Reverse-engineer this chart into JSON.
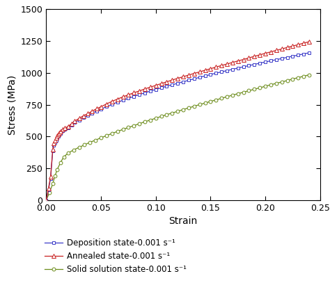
{
  "title": "",
  "xlabel": "Strain",
  "ylabel": "Stress (MPa)",
  "xlim": [
    0.0,
    0.25
  ],
  "ylim": [
    0,
    1500
  ],
  "xticks": [
    0.0,
    0.05,
    0.1,
    0.15,
    0.2,
    0.25
  ],
  "yticks": [
    0,
    250,
    500,
    750,
    1000,
    1250,
    1500
  ],
  "legend": [
    {
      "label": "Deposition state-0.001 s⁻¹",
      "color": "#3b3bc8",
      "marker": "s"
    },
    {
      "label": "Annealed state-0.001 s⁻¹",
      "color": "#c82020",
      "marker": "^"
    },
    {
      "label": "Solid solution state-0.001 s⁻¹",
      "color": "#6b8c1a",
      "marker": "o"
    }
  ],
  "dep_x": [
    0.0,
    0.002,
    0.004,
    0.006,
    0.007,
    0.008,
    0.009,
    0.01,
    0.011,
    0.012,
    0.013,
    0.015,
    0.017,
    0.02,
    0.023,
    0.026,
    0.03,
    0.034,
    0.038,
    0.042,
    0.046,
    0.05,
    0.055,
    0.06,
    0.065,
    0.07,
    0.075,
    0.08,
    0.085,
    0.09,
    0.095,
    0.1,
    0.105,
    0.11,
    0.115,
    0.12,
    0.125,
    0.13,
    0.135,
    0.14,
    0.145,
    0.15,
    0.155,
    0.16,
    0.165,
    0.17,
    0.175,
    0.18,
    0.185,
    0.19,
    0.195,
    0.2,
    0.205,
    0.21,
    0.215,
    0.22,
    0.225,
    0.23,
    0.235,
    0.24
  ],
  "dep_y": [
    0,
    80,
    170,
    390,
    430,
    455,
    470,
    485,
    500,
    515,
    525,
    545,
    555,
    570,
    590,
    610,
    630,
    650,
    665,
    685,
    700,
    715,
    735,
    752,
    770,
    785,
    800,
    815,
    830,
    843,
    857,
    870,
    882,
    895,
    907,
    918,
    930,
    942,
    953,
    965,
    976,
    987,
    998,
    1008,
    1018,
    1028,
    1038,
    1048,
    1057,
    1067,
    1076,
    1086,
    1095,
    1104,
    1113,
    1122,
    1131,
    1140,
    1149,
    1158
  ],
  "ann_x": [
    0.0,
    0.002,
    0.004,
    0.006,
    0.007,
    0.008,
    0.009,
    0.01,
    0.011,
    0.012,
    0.013,
    0.015,
    0.017,
    0.02,
    0.023,
    0.026,
    0.03,
    0.034,
    0.038,
    0.042,
    0.046,
    0.05,
    0.055,
    0.06,
    0.065,
    0.07,
    0.075,
    0.08,
    0.085,
    0.09,
    0.095,
    0.1,
    0.105,
    0.11,
    0.115,
    0.12,
    0.125,
    0.13,
    0.135,
    0.14,
    0.145,
    0.15,
    0.155,
    0.16,
    0.165,
    0.17,
    0.175,
    0.18,
    0.185,
    0.19,
    0.195,
    0.2,
    0.205,
    0.21,
    0.215,
    0.22,
    0.225,
    0.23,
    0.235,
    0.24
  ],
  "ann_y": [
    0,
    90,
    185,
    400,
    445,
    470,
    490,
    505,
    518,
    530,
    540,
    555,
    565,
    580,
    600,
    620,
    643,
    663,
    680,
    700,
    718,
    734,
    756,
    776,
    794,
    812,
    828,
    844,
    858,
    874,
    888,
    902,
    916,
    930,
    944,
    957,
    970,
    983,
    996,
    1008,
    1021,
    1033,
    1046,
    1058,
    1070,
    1082,
    1094,
    1105,
    1118,
    1130,
    1142,
    1154,
    1165,
    1177,
    1188,
    1200,
    1211,
    1222,
    1234,
    1245
  ],
  "sol_x": [
    0.0,
    0.003,
    0.006,
    0.008,
    0.01,
    0.013,
    0.016,
    0.02,
    0.025,
    0.03,
    0.035,
    0.04,
    0.045,
    0.05,
    0.055,
    0.06,
    0.065,
    0.07,
    0.075,
    0.08,
    0.085,
    0.09,
    0.095,
    0.1,
    0.105,
    0.11,
    0.115,
    0.12,
    0.125,
    0.13,
    0.135,
    0.14,
    0.145,
    0.15,
    0.155,
    0.16,
    0.165,
    0.17,
    0.175,
    0.18,
    0.185,
    0.19,
    0.195,
    0.2,
    0.205,
    0.21,
    0.215,
    0.22,
    0.225,
    0.23,
    0.235,
    0.24
  ],
  "sol_y": [
    0,
    60,
    130,
    190,
    240,
    295,
    340,
    370,
    395,
    415,
    435,
    455,
    472,
    490,
    507,
    524,
    540,
    556,
    571,
    586,
    601,
    616,
    630,
    644,
    658,
    672,
    685,
    698,
    712,
    725,
    738,
    751,
    763,
    776,
    788,
    800,
    813,
    825,
    837,
    848,
    860,
    872,
    883,
    895,
    907,
    918,
    929,
    940,
    952,
    963,
    974,
    985
  ]
}
